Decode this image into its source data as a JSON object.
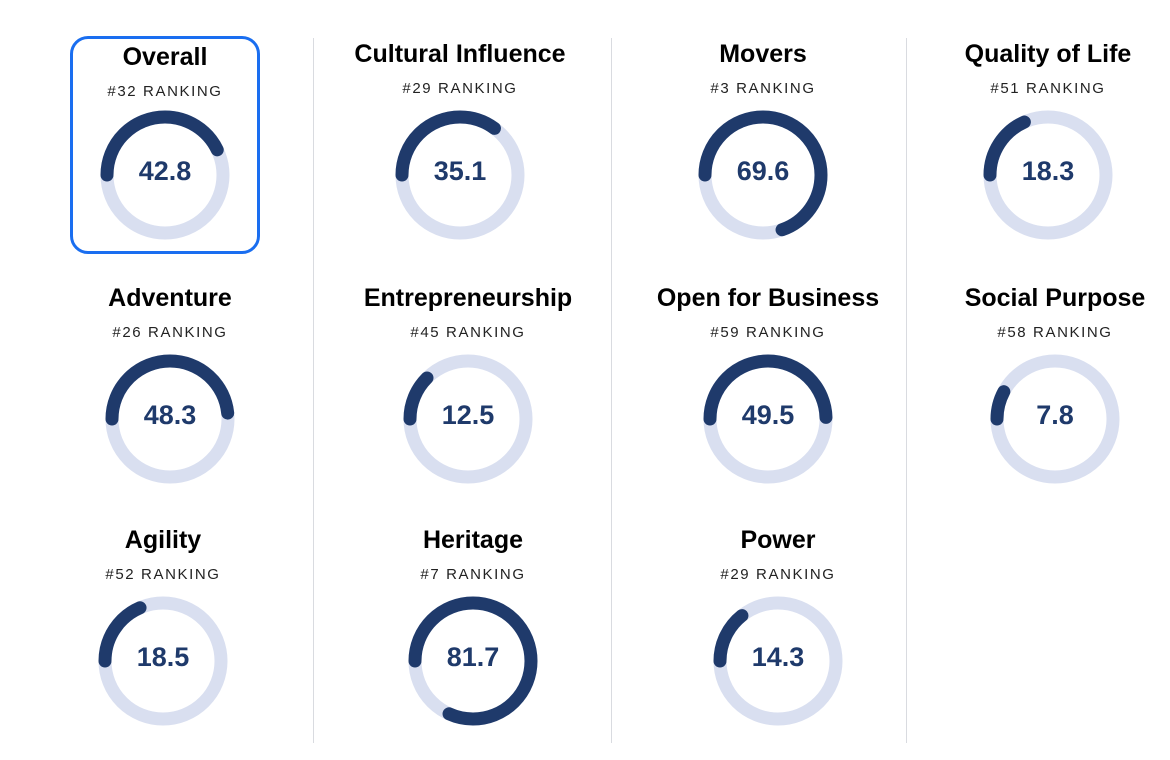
{
  "rank_suffix": "RANKING",
  "colors": {
    "track": "#d9dff0",
    "arc": "#1f3a6b",
    "selected_border": "#1a6ef0"
  },
  "categories": [
    {
      "title": "Overall",
      "rank": "#32",
      "score": 42.8,
      "score_label": "42.8",
      "selected": true
    },
    {
      "title": "Cultural Influence",
      "rank": "#29",
      "score": 35.1,
      "score_label": "35.1",
      "selected": false
    },
    {
      "title": "Movers",
      "rank": "#3",
      "score": 69.6,
      "score_label": "69.6",
      "selected": false
    },
    {
      "title": "Quality of Life",
      "rank": "#51",
      "score": 18.3,
      "score_label": "18.3",
      "selected": false
    },
    {
      "title": "Adventure",
      "rank": "#26",
      "score": 48.3,
      "score_label": "48.3",
      "selected": false
    },
    {
      "title": "Entrepreneurship",
      "rank": "#45",
      "score": 12.5,
      "score_label": "12.5",
      "selected": false
    },
    {
      "title": "Open for Business",
      "rank": "#59",
      "score": 49.5,
      "score_label": "49.5",
      "selected": false
    },
    {
      "title": "Social Purpose",
      "rank": "#58",
      "score": 7.8,
      "score_label": "7.8",
      "selected": false
    },
    {
      "title": "Agility",
      "rank": "#52",
      "score": 18.5,
      "score_label": "18.5",
      "selected": false
    },
    {
      "title": "Heritage",
      "rank": "#7",
      "score": 81.7,
      "score_label": "81.7",
      "selected": false
    },
    {
      "title": "Power",
      "rank": "#29",
      "score": 14.3,
      "score_label": "14.3",
      "selected": false
    }
  ]
}
